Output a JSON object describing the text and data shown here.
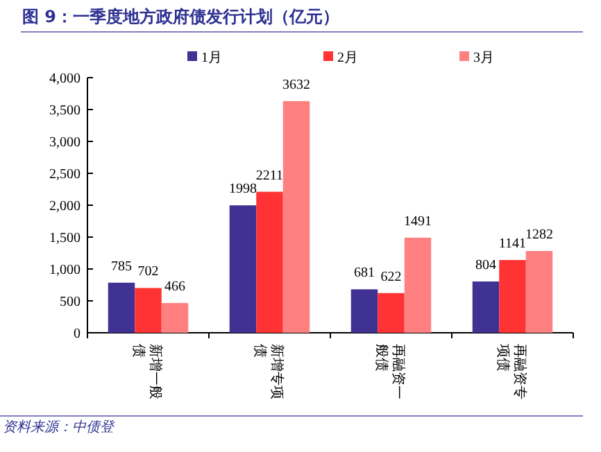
{
  "chart_data": {
    "type": "bar",
    "title": "图 9：一季度地方政府债发行计划（亿元）",
    "categories": [
      "新增一般债",
      "新增专项债",
      "再融资一般债",
      "再融资专项债"
    ],
    "series": [
      {
        "name": "1月",
        "color": "#3f3292",
        "values": [
          785,
          1998,
          681,
          804
        ]
      },
      {
        "name": "2月",
        "color": "#ff3333",
        "values": [
          702,
          2211,
          622,
          1141
        ]
      },
      {
        "name": "3月",
        "color": "#ff8080",
        "values": [
          466,
          3632,
          1491,
          1282
        ]
      }
    ],
    "ylim": [
      0,
      4000
    ],
    "yticks": [
      {
        "value": 0,
        "label": "0"
      },
      {
        "value": 500,
        "label": "500"
      },
      {
        "value": 1000,
        "label": "1,000"
      },
      {
        "value": 1500,
        "label": "1,500"
      },
      {
        "value": 2000,
        "label": "2,000"
      },
      {
        "value": 2500,
        "label": "2,500"
      },
      {
        "value": 3000,
        "label": "3,000"
      },
      {
        "value": 3500,
        "label": "3,500"
      },
      {
        "value": 4000,
        "label": "4,000"
      }
    ],
    "data_labels": true,
    "legend": "top",
    "grid": false,
    "annotations": [
      "资料来源：中债登"
    ]
  }
}
